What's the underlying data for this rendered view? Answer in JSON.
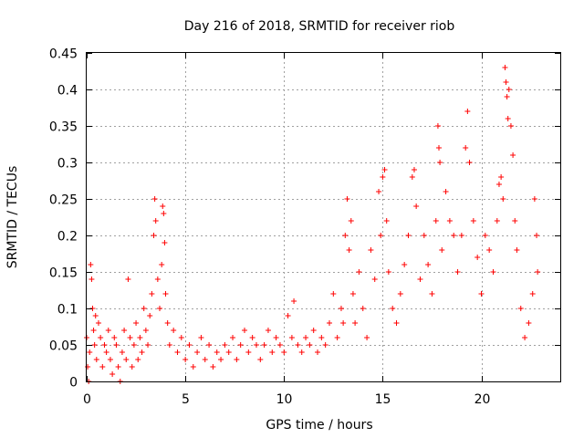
{
  "chart_data": {
    "type": "scatter",
    "title": "Day 216 of 2018, SRMTID for receiver riob",
    "xlabel": "GPS time / hours",
    "ylabel": "SRMTID / TECUs",
    "xlim": [
      0,
      24
    ],
    "ylim": [
      0,
      0.45
    ],
    "grid": true,
    "marker": "+",
    "marker_color": "#ff0000",
    "x_ticks": [
      {
        "value": 0,
        "label": "0"
      },
      {
        "value": 5,
        "label": "5"
      },
      {
        "value": 10,
        "label": "10"
      },
      {
        "value": 15,
        "label": "15"
      },
      {
        "value": 20,
        "label": "20"
      }
    ],
    "y_ticks": [
      {
        "value": 0,
        "label": "0"
      },
      {
        "value": 0.05,
        "label": "0.05"
      },
      {
        "value": 0.1,
        "label": "0.1"
      },
      {
        "value": 0.15,
        "label": "0.15"
      },
      {
        "value": 0.2,
        "label": "0.2"
      },
      {
        "value": 0.25,
        "label": "0.25"
      },
      {
        "value": 0.3,
        "label": "0.3"
      },
      {
        "value": 0.35,
        "label": "0.35"
      },
      {
        "value": 0.4,
        "label": "0.4"
      },
      {
        "value": 0.45,
        "label": "0.45"
      }
    ],
    "series": [
      {
        "name": "SRMTID",
        "color": "#ff0000",
        "points": [
          [
            0.0,
            0.06
          ],
          [
            0.05,
            0.02
          ],
          [
            0.1,
            0.0
          ],
          [
            0.15,
            0.04
          ],
          [
            0.2,
            0.16
          ],
          [
            0.25,
            0.14
          ],
          [
            0.3,
            0.1
          ],
          [
            0.35,
            0.07
          ],
          [
            0.4,
            0.05
          ],
          [
            0.45,
            0.09
          ],
          [
            0.5,
            0.03
          ],
          [
            0.6,
            0.08
          ],
          [
            0.7,
            0.06
          ],
          [
            0.8,
            0.02
          ],
          [
            0.9,
            0.05
          ],
          [
            1.0,
            0.04
          ],
          [
            1.1,
            0.07
          ],
          [
            1.2,
            0.03
          ],
          [
            1.3,
            0.01
          ],
          [
            1.4,
            0.06
          ],
          [
            1.5,
            0.05
          ],
          [
            1.6,
            0.02
          ],
          [
            1.7,
            0.0
          ],
          [
            1.8,
            0.04
          ],
          [
            1.9,
            0.07
          ],
          [
            2.0,
            0.03
          ],
          [
            2.1,
            0.14
          ],
          [
            2.2,
            0.06
          ],
          [
            2.3,
            0.02
          ],
          [
            2.4,
            0.05
          ],
          [
            2.5,
            0.08
          ],
          [
            2.6,
            0.03
          ],
          [
            2.7,
            0.06
          ],
          [
            2.8,
            0.04
          ],
          [
            2.9,
            0.1
          ],
          [
            3.0,
            0.07
          ],
          [
            3.1,
            0.05
          ],
          [
            3.2,
            0.09
          ],
          [
            3.3,
            0.12
          ],
          [
            3.4,
            0.2
          ],
          [
            3.45,
            0.25
          ],
          [
            3.5,
            0.22
          ],
          [
            3.6,
            0.14
          ],
          [
            3.7,
            0.1
          ],
          [
            3.8,
            0.16
          ],
          [
            3.85,
            0.24
          ],
          [
            3.9,
            0.23
          ],
          [
            3.95,
            0.19
          ],
          [
            4.0,
            0.12
          ],
          [
            4.1,
            0.08
          ],
          [
            4.2,
            0.05
          ],
          [
            4.4,
            0.07
          ],
          [
            4.6,
            0.04
          ],
          [
            4.8,
            0.06
          ],
          [
            5.0,
            0.03
          ],
          [
            5.2,
            0.05
          ],
          [
            5.4,
            0.02
          ],
          [
            5.6,
            0.04
          ],
          [
            5.8,
            0.06
          ],
          [
            6.0,
            0.03
          ],
          [
            6.2,
            0.05
          ],
          [
            6.4,
            0.02
          ],
          [
            6.6,
            0.04
          ],
          [
            6.8,
            0.03
          ],
          [
            7.0,
            0.05
          ],
          [
            7.2,
            0.04
          ],
          [
            7.4,
            0.06
          ],
          [
            7.6,
            0.03
          ],
          [
            7.8,
            0.05
          ],
          [
            8.0,
            0.07
          ],
          [
            8.2,
            0.04
          ],
          [
            8.4,
            0.06
          ],
          [
            8.6,
            0.05
          ],
          [
            8.8,
            0.03
          ],
          [
            9.0,
            0.05
          ],
          [
            9.2,
            0.07
          ],
          [
            9.4,
            0.04
          ],
          [
            9.6,
            0.06
          ],
          [
            9.8,
            0.05
          ],
          [
            10.0,
            0.04
          ],
          [
            10.2,
            0.09
          ],
          [
            10.4,
            0.06
          ],
          [
            10.5,
            0.11
          ],
          [
            10.7,
            0.05
          ],
          [
            10.9,
            0.04
          ],
          [
            11.1,
            0.06
          ],
          [
            11.3,
            0.05
          ],
          [
            11.5,
            0.07
          ],
          [
            11.7,
            0.04
          ],
          [
            11.9,
            0.06
          ],
          [
            12.1,
            0.05
          ],
          [
            12.3,
            0.08
          ],
          [
            12.5,
            0.12
          ],
          [
            12.7,
            0.06
          ],
          [
            12.9,
            0.1
          ],
          [
            13.0,
            0.08
          ],
          [
            13.1,
            0.2
          ],
          [
            13.2,
            0.25
          ],
          [
            13.3,
            0.18
          ],
          [
            13.4,
            0.22
          ],
          [
            13.5,
            0.12
          ],
          [
            13.6,
            0.08
          ],
          [
            13.8,
            0.15
          ],
          [
            14.0,
            0.1
          ],
          [
            14.2,
            0.06
          ],
          [
            14.4,
            0.18
          ],
          [
            14.6,
            0.14
          ],
          [
            14.8,
            0.26
          ],
          [
            14.9,
            0.2
          ],
          [
            15.0,
            0.28
          ],
          [
            15.1,
            0.29
          ],
          [
            15.2,
            0.22
          ],
          [
            15.3,
            0.15
          ],
          [
            15.5,
            0.1
          ],
          [
            15.7,
            0.08
          ],
          [
            15.9,
            0.12
          ],
          [
            16.1,
            0.16
          ],
          [
            16.3,
            0.2
          ],
          [
            16.5,
            0.28
          ],
          [
            16.6,
            0.29
          ],
          [
            16.7,
            0.24
          ],
          [
            16.9,
            0.14
          ],
          [
            17.1,
            0.2
          ],
          [
            17.3,
            0.16
          ],
          [
            17.5,
            0.12
          ],
          [
            17.7,
            0.22
          ],
          [
            17.8,
            0.35
          ],
          [
            17.85,
            0.32
          ],
          [
            17.9,
            0.3
          ],
          [
            18.0,
            0.18
          ],
          [
            18.2,
            0.26
          ],
          [
            18.4,
            0.22
          ],
          [
            18.6,
            0.2
          ],
          [
            18.8,
            0.15
          ],
          [
            19.0,
            0.2
          ],
          [
            19.2,
            0.32
          ],
          [
            19.3,
            0.37
          ],
          [
            19.4,
            0.3
          ],
          [
            19.6,
            0.22
          ],
          [
            19.8,
            0.17
          ],
          [
            20.0,
            0.12
          ],
          [
            20.2,
            0.2
          ],
          [
            20.4,
            0.18
          ],
          [
            20.6,
            0.15
          ],
          [
            20.8,
            0.22
          ],
          [
            20.9,
            0.27
          ],
          [
            21.0,
            0.28
          ],
          [
            21.1,
            0.25
          ],
          [
            21.2,
            0.43
          ],
          [
            21.25,
            0.41
          ],
          [
            21.3,
            0.39
          ],
          [
            21.35,
            0.36
          ],
          [
            21.4,
            0.4
          ],
          [
            21.5,
            0.35
          ],
          [
            21.6,
            0.31
          ],
          [
            21.7,
            0.22
          ],
          [
            21.8,
            0.18
          ],
          [
            22.0,
            0.1
          ],
          [
            22.2,
            0.06
          ],
          [
            22.4,
            0.08
          ],
          [
            22.6,
            0.12
          ],
          [
            22.7,
            0.25
          ],
          [
            22.8,
            0.2
          ],
          [
            22.85,
            0.15
          ]
        ]
      }
    ]
  }
}
